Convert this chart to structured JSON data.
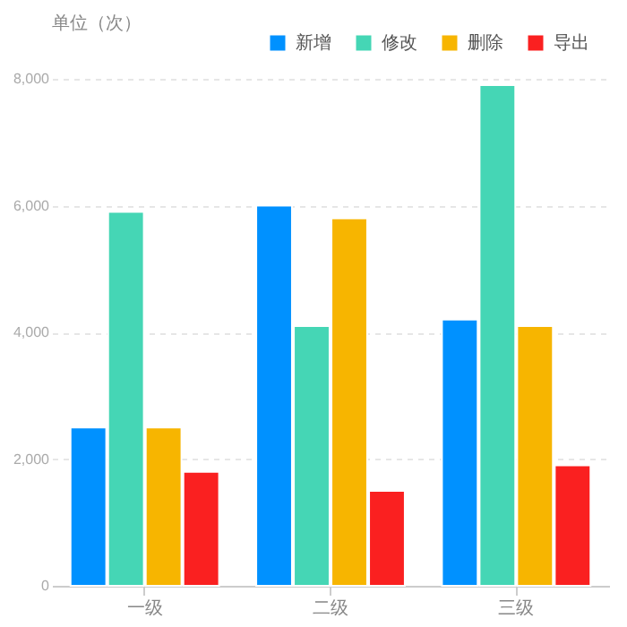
{
  "chart_data": {
    "type": "bar",
    "ylabel": "单位（次）",
    "categories": [
      "一级",
      "二级",
      "三级"
    ],
    "series": [
      {
        "name": "新增",
        "color": "#0091ff",
        "values": [
          2500,
          6000,
          4200
        ]
      },
      {
        "name": "修改",
        "color": "#45d6b5",
        "values": [
          5900,
          4100,
          7900
        ]
      },
      {
        "name": "删除",
        "color": "#f7b500",
        "values": [
          2500,
          5800,
          4100
        ]
      },
      {
        "name": "导出",
        "color": "#fa2020",
        "values": [
          1800,
          1500,
          1900
        ]
      }
    ],
    "ylim": [
      0,
      8000
    ],
    "yticks": [
      0,
      {
        "value": 2000,
        "label": "2,000"
      },
      {
        "value": 4000,
        "label": "4,000"
      },
      {
        "value": 6000,
        "label": "6,000"
      },
      {
        "value": 8000,
        "label": "8,000"
      }
    ],
    "grid": "y",
    "legend": "top right"
  }
}
